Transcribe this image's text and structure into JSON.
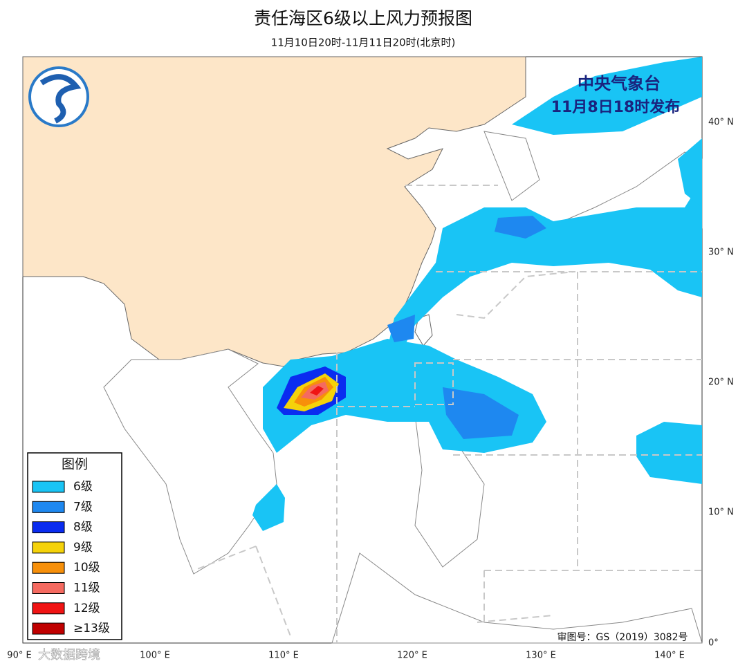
{
  "header": {
    "title": "责任海区6级以上风力预报图",
    "subtitle": "11月10日20时-11月11日20时(北京时)"
  },
  "issuer": {
    "name": "中央气象台",
    "time": "11月8日18时发布"
  },
  "lat_labels": [
    "40° N",
    "30° N",
    "20° N",
    "10° N",
    "0°"
  ],
  "lon_labels": [
    "90° E",
    "100° E",
    "110° E",
    "120° E",
    "130° E",
    "140° E"
  ],
  "legend": {
    "title": "图例",
    "items": [
      {
        "label": "6级",
        "color": "#19c4f5"
      },
      {
        "label": "7级",
        "color": "#1e88f0"
      },
      {
        "label": "8级",
        "color": "#0a2cf0"
      },
      {
        "label": "9级",
        "color": "#f5d20a"
      },
      {
        "label": "10级",
        "color": "#f7900a"
      },
      {
        "label": "11级",
        "color": "#f56a60"
      },
      {
        "label": "12级",
        "color": "#f01414"
      },
      {
        "label": "≥13级",
        "color": "#c00000"
      }
    ]
  },
  "approval": "审图号：GS（2019）3082号",
  "watermark": "大数据跨境"
}
